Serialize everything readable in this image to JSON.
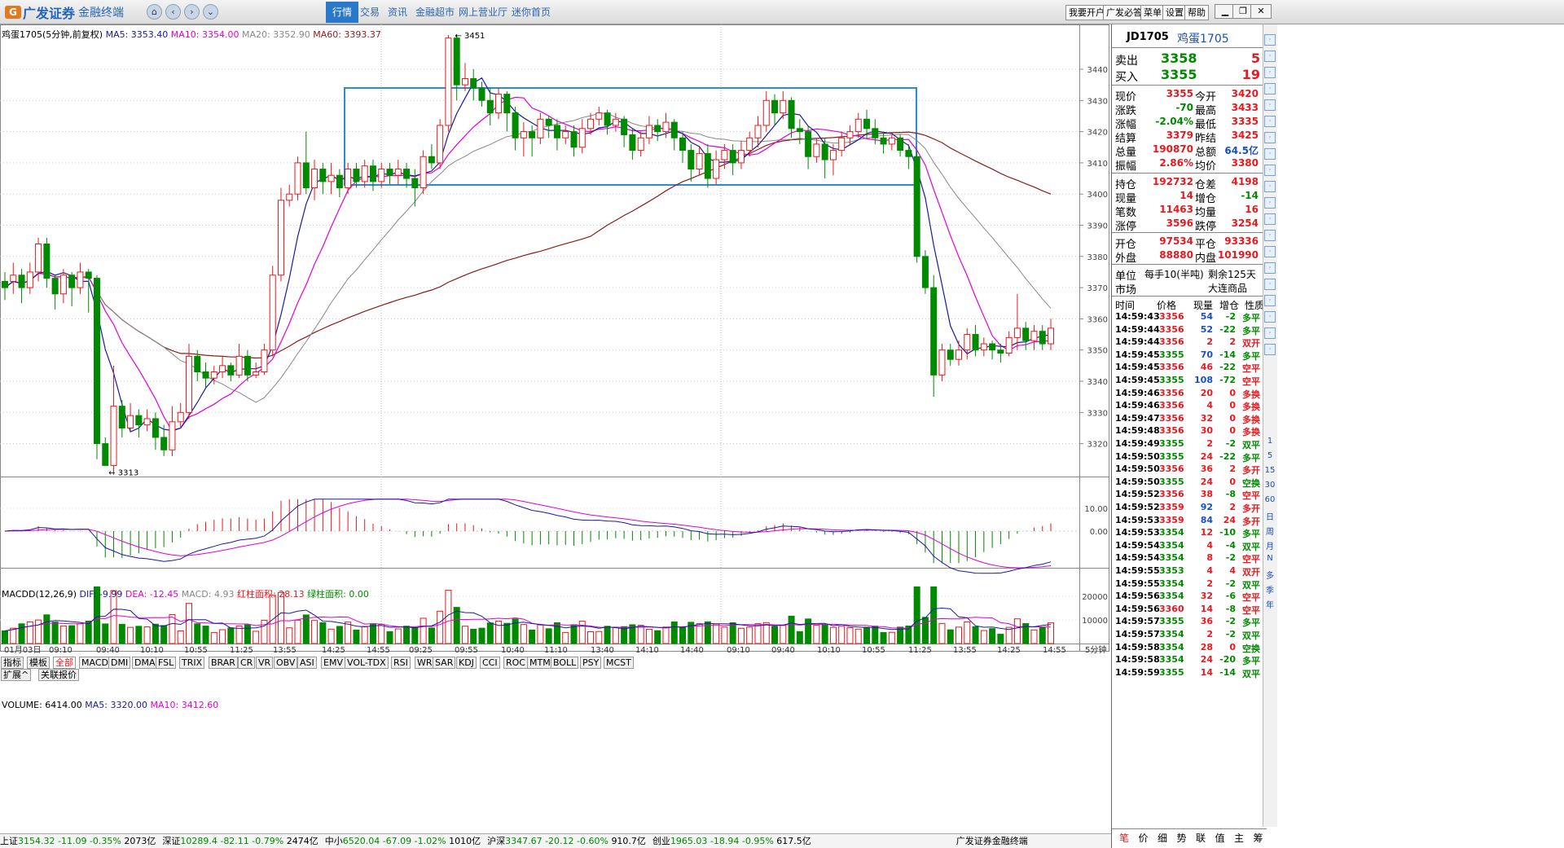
{
  "app": {
    "logo_text": "广发证券",
    "sub_text": "金融终端",
    "menu": [
      "行情",
      "交易",
      "资讯",
      "金融超市",
      "网上营业厅",
      "迷你首页"
    ],
    "right_buttons": [
      "我要开户",
      "广发必答",
      "菜单",
      "设置",
      "帮助"
    ]
  },
  "kchart": {
    "title": "鸡蛋1705(5分钟,前复权)",
    "ma5": "MA5: 3353.40",
    "ma10": "MA10: 3354.00",
    "ma20": "MA20: 3352.90",
    "ma60": "MA60: 3393.37",
    "high_mark": "3451",
    "low_mark": "3313",
    "price_ticks": [
      "3440",
      "3430",
      "3420",
      "3410",
      "3400",
      "3390",
      "3380",
      "3370",
      "3360",
      "3350",
      "3340",
      "3330",
      "3320"
    ]
  },
  "macd": {
    "title": "MACDD(12,26,9)",
    "dif": "DIF: -9.99",
    "dea": "DEA: -12.45",
    "macd": "MACD: 4.93",
    "red_area": "红柱面积: 28.13",
    "green_area": "绿柱面积: 0.00",
    "ticks": [
      "10.00",
      "0.00"
    ]
  },
  "volume": {
    "title": "VOLUME: 6414.00",
    "ma5": "MA5: 3320.00",
    "ma10": "MA10: 3412.60",
    "ticks": [
      "20000",
      "10000"
    ]
  },
  "time_axis": [
    "01月03日",
    "09:10",
    "09:40",
    "10:10",
    "10:55",
    "11:25",
    "13:55",
    "14:25",
    "14:55",
    "09:25",
    "09:55",
    "10:40",
    "11:10",
    "13:40",
    "14:10",
    "14:40",
    "09:10",
    "09:40",
    "10:10",
    "10:55",
    "11:25",
    "13:55",
    "14:25",
    "14:55"
  ],
  "period_label": "5分钟",
  "bottom_tabs": [
    "指标",
    "模板",
    "全部",
    "MACD",
    "DMI",
    "DMA",
    "FSL",
    "TRIX",
    "BRAR",
    "CR",
    "VR",
    "OBV",
    "ASI",
    "EMV",
    "VOL-TDX",
    "RSI",
    "WR",
    "SAR",
    "KDJ",
    "CCI",
    "ROC",
    "MTM",
    "BOLL",
    "PSY",
    "MCST"
  ],
  "bottom_tabs2": [
    "扩展^",
    "关联报价"
  ],
  "ticker": [
    {
      "name": "上证",
      "val": "3154.32",
      "chg": "-11.09",
      "pct": "-0.35%",
      "amt": "2073亿"
    },
    {
      "name": "深证",
      "val": "10289.4",
      "chg": "-82.11",
      "pct": "-0.79%",
      "amt": "2474亿"
    },
    {
      "name": "中小",
      "val": "6520.04",
      "chg": "-67.09",
      "pct": "-1.02%",
      "amt": "1010亿"
    },
    {
      "name": "沪深",
      "val": "3347.67",
      "chg": "-20.12",
      "pct": "-0.60%",
      "amt": "910.7亿"
    },
    {
      "name": "创业",
      "val": "1965.03",
      "chg": "-18.94",
      "pct": "-0.95%",
      "amt": "617.5亿"
    }
  ],
  "ticker_brand": "广发证券金融终端",
  "quote": {
    "code": "JD1705",
    "name": "鸡蛋1705",
    "sell": {
      "label": "卖出",
      "price": "3358",
      "vol": "5"
    },
    "buy": {
      "label": "买入",
      "price": "3355",
      "vol": "19"
    },
    "rows1": [
      [
        "现价",
        "3355",
        "今开",
        "3420"
      ],
      [
        "涨跌",
        "-70",
        "最高",
        "3433"
      ],
      [
        "涨幅",
        "-2.04%",
        "最低",
        "3335"
      ],
      [
        "结算",
        "3379",
        "昨结",
        "3425"
      ],
      [
        "总量",
        "190870",
        "总额",
        "64.5亿"
      ],
      [
        "振幅",
        "2.86%",
        "均价",
        "3380"
      ]
    ],
    "rows2": [
      [
        "持仓",
        "192732",
        "仓差",
        "4198"
      ],
      [
        "现量",
        "14",
        "增仓",
        "-14"
      ],
      [
        "笔数",
        "11463",
        "均量",
        "16"
      ],
      [
        "涨停",
        "3596",
        "跌停",
        "3254"
      ]
    ],
    "rows3": [
      [
        "开仓",
        "97534",
        "平仓",
        "93336"
      ],
      [
        "外盘",
        "88880",
        "内盘",
        "101990"
      ]
    ],
    "unit_label": "单位",
    "unit_val": "每手10(半吨)",
    "remain": "剩余125天",
    "market_label": "市场",
    "market_val": "大连商品",
    "tick_headers": [
      "时间",
      "价格",
      "现量",
      "增仓",
      "性质"
    ],
    "ticks": [
      [
        "14:59:43",
        "3356",
        "54",
        "-2",
        "多平"
      ],
      [
        "14:59:44",
        "3356",
        "52",
        "-22",
        "多平"
      ],
      [
        "14:59:44",
        "3356",
        "2",
        "2",
        "双开"
      ],
      [
        "14:59:45",
        "3355",
        "70",
        "-14",
        "多平"
      ],
      [
        "14:59:45",
        "3356",
        "46",
        "-22",
        "空平"
      ],
      [
        "14:59:45",
        "3355",
        "108",
        "-72",
        "空平"
      ],
      [
        "14:59:46",
        "3356",
        "20",
        "0",
        "多换"
      ],
      [
        "14:59:46",
        "3356",
        "4",
        "0",
        "多换"
      ],
      [
        "14:59:47",
        "3356",
        "32",
        "0",
        "多换"
      ],
      [
        "14:59:48",
        "3356",
        "30",
        "0",
        "多换"
      ],
      [
        "14:59:49",
        "3355",
        "2",
        "-2",
        "双平"
      ],
      [
        "14:59:50",
        "3355",
        "24",
        "-22",
        "多平"
      ],
      [
        "14:59:50",
        "3356",
        "36",
        "2",
        "多开"
      ],
      [
        "14:59:50",
        "3355",
        "24",
        "0",
        "空换"
      ],
      [
        "14:59:52",
        "3356",
        "38",
        "-8",
        "空平"
      ],
      [
        "14:59:52",
        "3359",
        "92",
        "2",
        "多开"
      ],
      [
        "14:59:53",
        "3359",
        "84",
        "24",
        "多开"
      ],
      [
        "14:59:53",
        "3354",
        "12",
        "-10",
        "多平"
      ],
      [
        "14:59:54",
        "3354",
        "4",
        "-4",
        "双平"
      ],
      [
        "14:59:54",
        "3354",
        "8",
        "-2",
        "空平"
      ],
      [
        "14:59:55",
        "3353",
        "4",
        "4",
        "双开"
      ],
      [
        "14:59:55",
        "3354",
        "2",
        "-2",
        "双平"
      ],
      [
        "14:59:56",
        "3354",
        "32",
        "-6",
        "空平"
      ],
      [
        "14:59:56",
        "3360",
        "14",
        "-8",
        "空平"
      ],
      [
        "14:59:57",
        "3355",
        "36",
        "-2",
        "多平"
      ],
      [
        "14:59:57",
        "3354",
        "2",
        "-2",
        "双平"
      ],
      [
        "14:59:58",
        "3354",
        "28",
        "0",
        "空换"
      ],
      [
        "14:59:58",
        "3354",
        "24",
        "-20",
        "多平"
      ],
      [
        "14:59:59",
        "3355",
        "14",
        "-14",
        "双平"
      ]
    ],
    "bottom_tabs": [
      "笔",
      "价",
      "细",
      "势",
      "联",
      "值",
      "主",
      "筹"
    ]
  },
  "side_tools": [
    "1",
    "5",
    "15",
    "30",
    "60",
    "日",
    "周",
    "月",
    "N",
    "多",
    "季",
    "年"
  ],
  "colors": {
    "up": "#e8191e",
    "down": "#008a00",
    "ma5": "#1a1a9e",
    "ma10": "#e000d6",
    "ma20": "#888888",
    "ma60": "#8b1d1d",
    "box": "#2d8bd6"
  }
}
